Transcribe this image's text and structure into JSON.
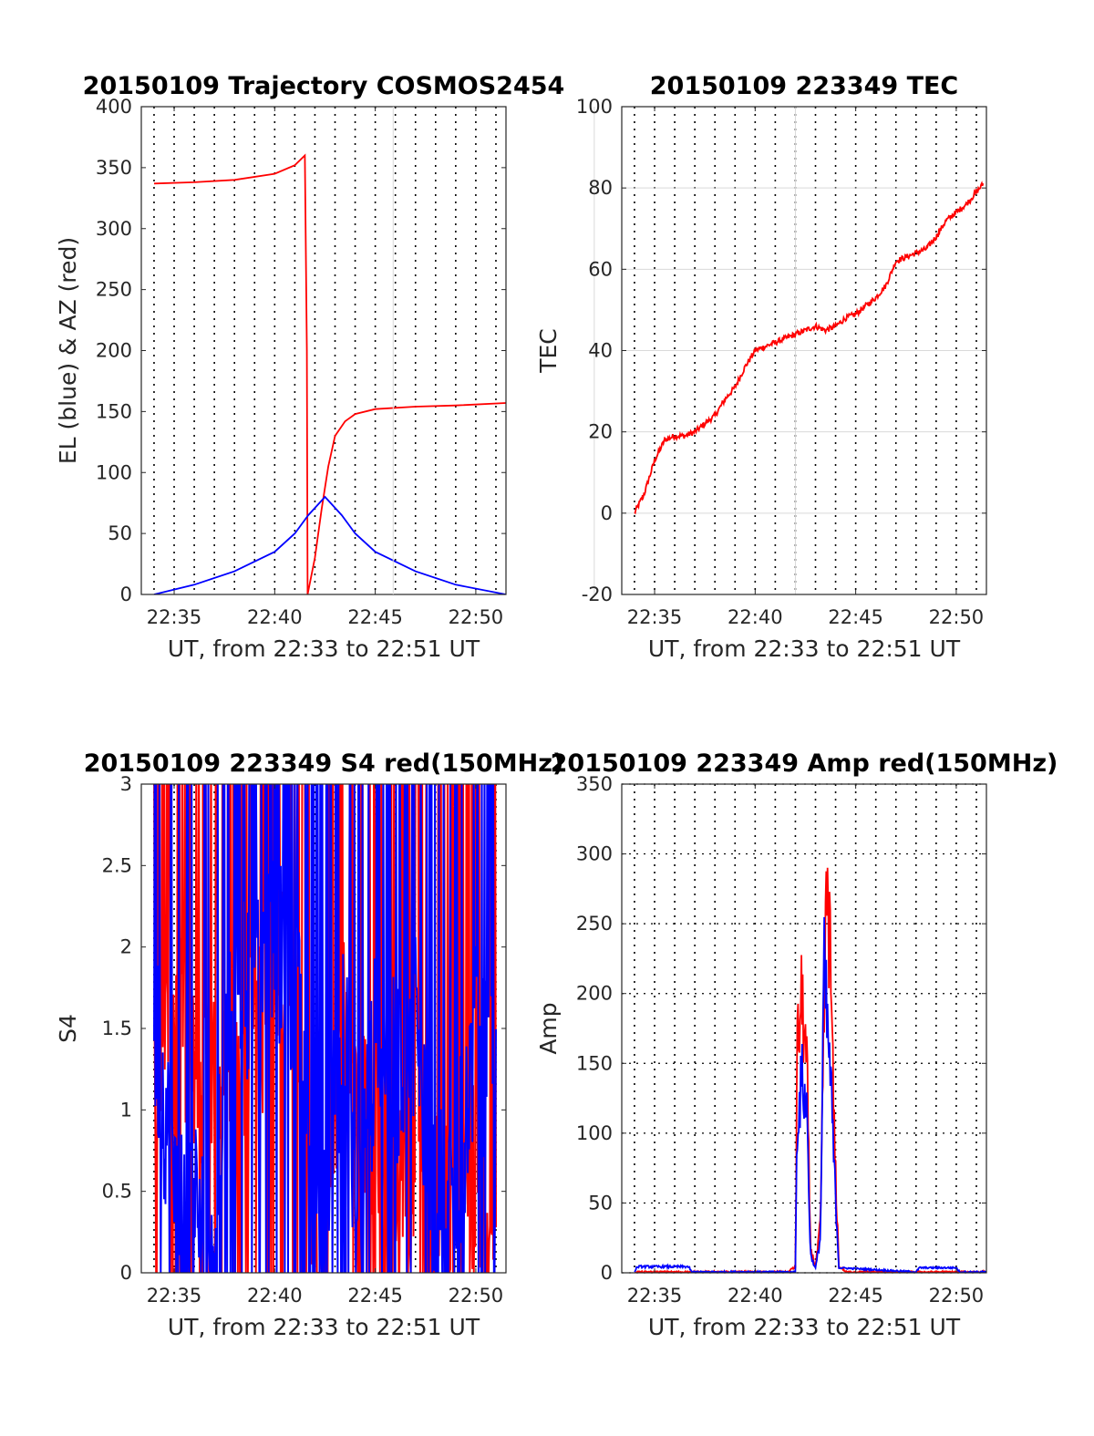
{
  "chart_data": [
    {
      "type": "line",
      "title": "20150109 Trajectory COSMOS2454",
      "xlabel": "UT, from 22:33 to 22:51 UT",
      "ylabel": "EL (blue) & AZ (red)",
      "xlim": [
        "22:33:22",
        "22:51:30"
      ],
      "ylim": [
        0,
        400
      ],
      "yticks": [
        0,
        50,
        100,
        150,
        200,
        250,
        300,
        350,
        400
      ],
      "xticks": [
        "22:35",
        "22:40",
        "22:45",
        "22:50"
      ],
      "grid": "x dotted every minute",
      "series": [
        {
          "name": "AZ",
          "color": "#ff0000",
          "x": [
            "22:34:00",
            "22:36:00",
            "22:38:00",
            "22:40:00",
            "22:41:00",
            "22:41:30",
            "22:41:36",
            "22:41:38",
            "22:42:00",
            "22:42:20",
            "22:42:40",
            "22:43:00",
            "22:43:30",
            "22:44:00",
            "22:45:00",
            "22:47:00",
            "22:49:00",
            "22:51:30"
          ],
          "y": [
            337,
            338,
            340,
            345,
            352,
            360,
            200,
            0,
            30,
            70,
            105,
            130,
            142,
            148,
            152,
            154,
            155,
            157
          ]
        },
        {
          "name": "EL",
          "color": "#0000ff",
          "x": [
            "22:34:00",
            "22:36:00",
            "22:38:00",
            "22:40:00",
            "22:41:00",
            "22:41:40",
            "22:42:30",
            "22:43:20",
            "22:44:00",
            "22:45:00",
            "22:47:00",
            "22:49:00",
            "22:51:30"
          ],
          "y": [
            0,
            8,
            19,
            35,
            50,
            65,
            80,
            65,
            50,
            35,
            19,
            8,
            0
          ]
        }
      ]
    },
    {
      "type": "line",
      "title": "20150109 223349 TEC",
      "xlabel": "UT, from 22:33 to 22:51 UT",
      "ylabel": "TEC",
      "xlim": [
        "22:33:22",
        "22:51:30"
      ],
      "ylim": [
        -20,
        100
      ],
      "yticks": [
        -20,
        0,
        20,
        40,
        60,
        80,
        100
      ],
      "xticks": [
        "22:35",
        "22:40",
        "22:45",
        "22:50"
      ],
      "grid": "x dotted every minute, y solid",
      "series": [
        {
          "name": "TEC",
          "color": "#ff0000",
          "x": [
            "22:34:00",
            "22:34:30",
            "22:35:00",
            "22:35:30",
            "22:36:00",
            "22:36:30",
            "22:37:00",
            "22:37:30",
            "22:38:00",
            "22:38:30",
            "22:39:00",
            "22:39:30",
            "22:40:00",
            "22:40:30",
            "22:41:00",
            "22:41:30",
            "22:42:00",
            "22:42:30",
            "22:43:00",
            "22:43:30",
            "22:44:00",
            "22:44:30",
            "22:45:00",
            "22:45:30",
            "22:46:00",
            "22:46:30",
            "22:47:00",
            "22:47:30",
            "22:48:00",
            "22:48:30",
            "22:49:00",
            "22:49:30",
            "22:50:00",
            "22:50:30",
            "22:51:20"
          ],
          "y": [
            0,
            5,
            13,
            18,
            19,
            19,
            20,
            22,
            24,
            28,
            31,
            36,
            40,
            41,
            42,
            43,
            44,
            45,
            46,
            45,
            46,
            48,
            49,
            51,
            53,
            56,
            62,
            63,
            64,
            65,
            68,
            72,
            74,
            76,
            81
          ]
        }
      ]
    },
    {
      "type": "line",
      "title": "20150109 223349 S4 red(150MHz)",
      "xlabel": "UT, from 22:33 to 22:51 UT",
      "ylabel": "S4",
      "xlim": [
        "22:33:22",
        "22:51:30"
      ],
      "ylim": [
        0,
        3
      ],
      "yticks": [
        0,
        0.5,
        1,
        1.5,
        2,
        2.5,
        3
      ],
      "xticks": [
        "22:35",
        "22:40",
        "22:45",
        "22:50"
      ],
      "grid": "x dotted every minute",
      "series": [
        {
          "name": "S4 red",
          "color": "#ff0000",
          "x": [
            "22:34:00",
            "22:35:00",
            "22:36:00",
            "22:37:00",
            "22:38:00",
            "22:39:00",
            "22:40:00",
            "22:41:00",
            "22:41:30",
            "22:42:00",
            "22:42:30",
            "22:43:00",
            "22:43:30",
            "22:44:00",
            "22:45:00",
            "22:46:00",
            "22:47:00",
            "22:48:00",
            "22:49:00",
            "22:50:00",
            "22:51:00"
          ],
          "y": [
            1.4,
            1.6,
            1.2,
            1.1,
            1.3,
            1.5,
            1.7,
            1.9,
            1.3,
            0.3,
            0.2,
            1.1,
            1.6,
            1.0,
            0.9,
            0.7,
            0.5,
            0.4,
            0.4,
            0.6,
            0.3
          ]
        },
        {
          "name": "S4 blue",
          "color": "#0000ff",
          "x": [
            "22:34:00",
            "22:35:00",
            "22:36:00",
            "22:37:00",
            "22:38:00",
            "22:39:00",
            "22:40:00",
            "22:41:00",
            "22:41:30",
            "22:42:00",
            "22:42:30",
            "22:43:00",
            "22:43:30",
            "22:44:00",
            "22:45:00",
            "22:46:00",
            "22:47:00",
            "22:48:00",
            "22:49:00",
            "22:50:00",
            "22:51:00"
          ],
          "y": [
            1.6,
            0.5,
            0.4,
            0.3,
            1.9,
            1.7,
            2.0,
            1.8,
            1.2,
            0.2,
            0.3,
            1.2,
            1.5,
            0.2,
            1.4,
            1.2,
            1.6,
            0.4,
            0.5,
            1.5,
            1.0
          ]
        }
      ]
    },
    {
      "type": "line",
      "title": "20150109 223349 Amp red(150MHz)",
      "xlabel": "UT, from 22:33 to 22:51 UT",
      "ylabel": "Amp",
      "xlim": [
        "22:33:22",
        "22:51:30"
      ],
      "ylim": [
        0,
        350
      ],
      "yticks": [
        0,
        50,
        100,
        150,
        200,
        250,
        300,
        350
      ],
      "xticks": [
        "22:35",
        "22:40",
        "22:45",
        "22:50"
      ],
      "grid": "x dotted every minute, y dotted",
      "series": [
        {
          "name": "Amp red",
          "color": "#ff0000",
          "x": [
            "22:34:00",
            "22:41:40",
            "22:42:00",
            "22:42:05",
            "22:42:20",
            "22:42:35",
            "22:42:45",
            "22:43:00",
            "22:43:15",
            "22:43:25",
            "22:43:35",
            "22:43:45",
            "22:43:55",
            "22:44:10",
            "22:44:30",
            "22:51:30"
          ],
          "y": [
            0,
            0,
            5,
            180,
            225,
            160,
            20,
            5,
            40,
            200,
            325,
            250,
            120,
            5,
            0,
            0
          ]
        },
        {
          "name": "Amp blue",
          "color": "#0000ff",
          "x": [
            "22:34:00",
            "22:34:10",
            "22:36:40",
            "22:36:50",
            "22:42:00",
            "22:42:05",
            "22:42:20",
            "22:42:35",
            "22:42:45",
            "22:43:00",
            "22:43:15",
            "22:43:25",
            "22:43:35",
            "22:43:45",
            "22:43:55",
            "22:44:10",
            "22:48:00",
            "22:48:10",
            "22:50:00",
            "22:50:10",
            "22:51:30"
          ],
          "y": [
            0,
            5,
            5,
            0,
            0,
            120,
            160,
            130,
            15,
            3,
            30,
            250,
            200,
            160,
            90,
            3,
            0,
            3,
            3,
            0,
            0
          ]
        }
      ]
    }
  ]
}
